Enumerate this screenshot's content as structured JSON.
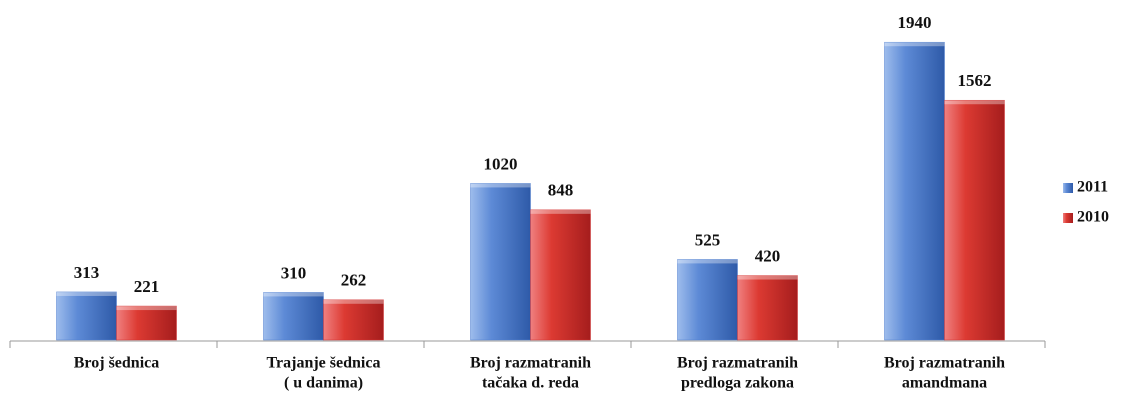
{
  "chart_data": {
    "type": "bar",
    "categories": [
      [
        "Broj šednica"
      ],
      [
        "Trajanje šednica",
        "( u danima)"
      ],
      [
        "Broj razmatranih",
        "tačaka d. reda"
      ],
      [
        "Broj razmatranih",
        "predloga zakona"
      ],
      [
        "Broj razmatranih",
        "amandmana"
      ]
    ],
    "series": [
      {
        "name": "2011",
        "color": "#4f7fd0",
        "values": [
          313,
          310,
          1020,
          525,
          1940
        ]
      },
      {
        "name": "2010",
        "color": "#d32f2f",
        "values": [
          221,
          262,
          848,
          420,
          1562
        ]
      }
    ],
    "ylim": [
      0,
      2000
    ],
    "legend": "right"
  }
}
